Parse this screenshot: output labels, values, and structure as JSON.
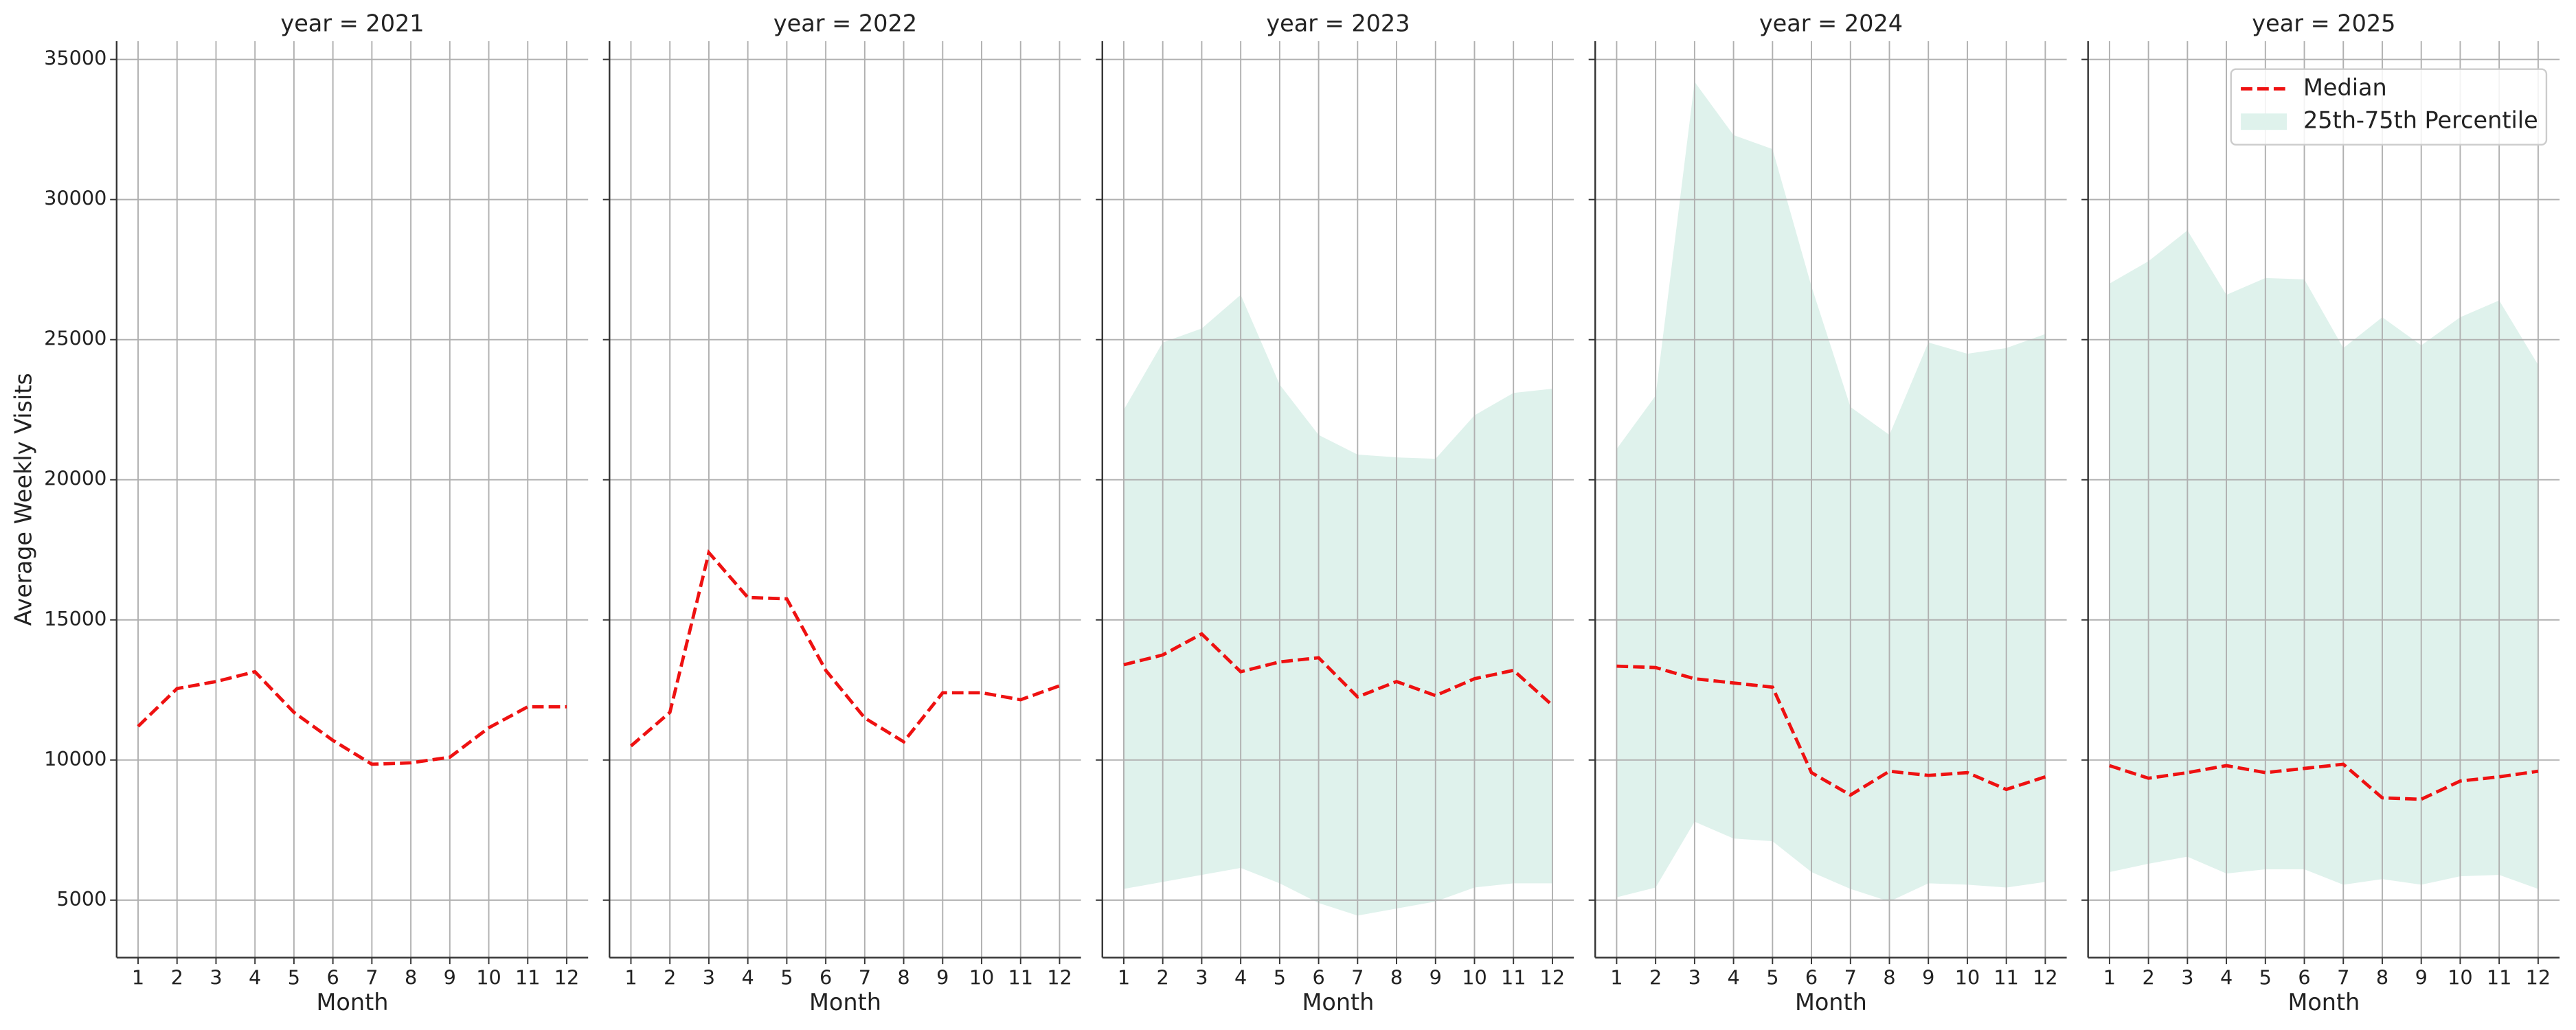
{
  "chart_data": [
    {
      "type": "line",
      "title": "year = 2021",
      "x_label": "Month",
      "y_label": "Average Weekly Visits",
      "x": [
        1,
        2,
        3,
        4,
        5,
        6,
        7,
        8,
        9,
        10,
        11,
        12
      ],
      "xlim": [
        0.45,
        12.55
      ],
      "xticks": [
        1,
        2,
        3,
        4,
        5,
        6,
        7,
        8,
        9,
        10,
        11,
        12
      ],
      "ylim": [
        2950,
        35650
      ],
      "yticks": [
        5000,
        10000,
        15000,
        20000,
        25000,
        30000,
        35000
      ],
      "grid": true,
      "series": [
        {
          "name": "Median",
          "color": "#ee1111",
          "dash": "dashed",
          "values": [
            11200,
            12550,
            12800,
            13150,
            11700,
            10700,
            9850,
            9900,
            10100,
            11150,
            11900,
            11900
          ]
        }
      ]
    },
    {
      "type": "line",
      "title": "year = 2022",
      "x_label": "Month",
      "x": [
        1,
        2,
        3,
        4,
        5,
        6,
        7,
        8,
        9,
        10,
        11,
        12
      ],
      "xlim": [
        0.45,
        12.55
      ],
      "xticks": [
        1,
        2,
        3,
        4,
        5,
        6,
        7,
        8,
        9,
        10,
        11,
        12
      ],
      "ylim": [
        2950,
        35650
      ],
      "yticks": [
        5000,
        10000,
        15000,
        20000,
        25000,
        30000,
        35000
      ],
      "grid": true,
      "series": [
        {
          "name": "Median",
          "color": "#ee1111",
          "dash": "dashed",
          "values": [
            10500,
            11700,
            17400,
            15800,
            15750,
            13200,
            11500,
            10650,
            12400,
            12400,
            12150,
            12650
          ]
        }
      ]
    },
    {
      "type": "line",
      "title": "year = 2023",
      "x_label": "Month",
      "x": [
        1,
        2,
        3,
        4,
        5,
        6,
        7,
        8,
        9,
        10,
        11,
        12
      ],
      "xlim": [
        0.45,
        12.55
      ],
      "xticks": [
        1,
        2,
        3,
        4,
        5,
        6,
        7,
        8,
        9,
        10,
        11,
        12
      ],
      "ylim": [
        2950,
        35650
      ],
      "yticks": [
        5000,
        10000,
        15000,
        20000,
        25000,
        30000,
        35000
      ],
      "grid": true,
      "series": [
        {
          "name": "Median",
          "color": "#ee1111",
          "dash": "dashed",
          "values": [
            13400,
            13750,
            14500,
            13150,
            13500,
            13650,
            12250,
            12800,
            12300,
            12900,
            13200,
            11950
          ]
        },
        {
          "name": "25th-75th Percentile",
          "color": "#dff2ec",
          "lower": [
            5400,
            5650,
            5900,
            6150,
            5600,
            4900,
            4450,
            4700,
            4950,
            5450,
            5600,
            5600
          ],
          "upper": [
            22500,
            24900,
            25400,
            26600,
            23400,
            21600,
            20900,
            20800,
            20750,
            22300,
            23100,
            23250
          ]
        }
      ]
    },
    {
      "type": "line",
      "title": "year = 2024",
      "x_label": "Month",
      "x": [
        1,
        2,
        3,
        4,
        5,
        6,
        7,
        8,
        9,
        10,
        11,
        12
      ],
      "xlim": [
        0.45,
        12.55
      ],
      "xticks": [
        1,
        2,
        3,
        4,
        5,
        6,
        7,
        8,
        9,
        10,
        11,
        12
      ],
      "ylim": [
        2950,
        35650
      ],
      "yticks": [
        5000,
        10000,
        15000,
        20000,
        25000,
        30000,
        35000
      ],
      "grid": true,
      "series": [
        {
          "name": "Median",
          "color": "#ee1111",
          "dash": "dashed",
          "values": [
            13350,
            13300,
            12900,
            12750,
            12600,
            9550,
            8750,
            9600,
            9450,
            9550,
            8950,
            9400
          ]
        },
        {
          "name": "25th-75th Percentile",
          "color": "#dff2ec",
          "lower": [
            5100,
            5450,
            7800,
            7200,
            7100,
            6000,
            5400,
            4950,
            5600,
            5550,
            5450,
            5650
          ],
          "upper": [
            21100,
            23000,
            34200,
            32300,
            31800,
            26900,
            22600,
            21600,
            24900,
            24500,
            24700,
            25200
          ]
        }
      ]
    },
    {
      "type": "line",
      "title": "year = 2025",
      "x_label": "Month",
      "legend": "upper right",
      "x": [
        1,
        2,
        3,
        4,
        5,
        6,
        7,
        8,
        9,
        10,
        11,
        12
      ],
      "xlim": [
        0.45,
        12.55
      ],
      "xticks": [
        1,
        2,
        3,
        4,
        5,
        6,
        7,
        8,
        9,
        10,
        11,
        12
      ],
      "ylim": [
        2950,
        35650
      ],
      "yticks": [
        5000,
        10000,
        15000,
        20000,
        25000,
        30000,
        35000
      ],
      "grid": true,
      "series": [
        {
          "name": "Median",
          "color": "#ee1111",
          "dash": "dashed",
          "values": [
            9800,
            9350,
            9550,
            9800,
            9550,
            9700,
            9850,
            8650,
            8600,
            9250,
            9400,
            9600
          ]
        },
        {
          "name": "25th-75th Percentile",
          "color": "#dff2ec",
          "lower": [
            6000,
            6300,
            6550,
            5950,
            6100,
            6100,
            5550,
            5750,
            5550,
            5850,
            5900,
            5400
          ],
          "upper": [
            27000,
            27800,
            28900,
            26600,
            27200,
            27150,
            24700,
            25800,
            24800,
            25800,
            26400,
            24100
          ]
        }
      ]
    }
  ]
}
